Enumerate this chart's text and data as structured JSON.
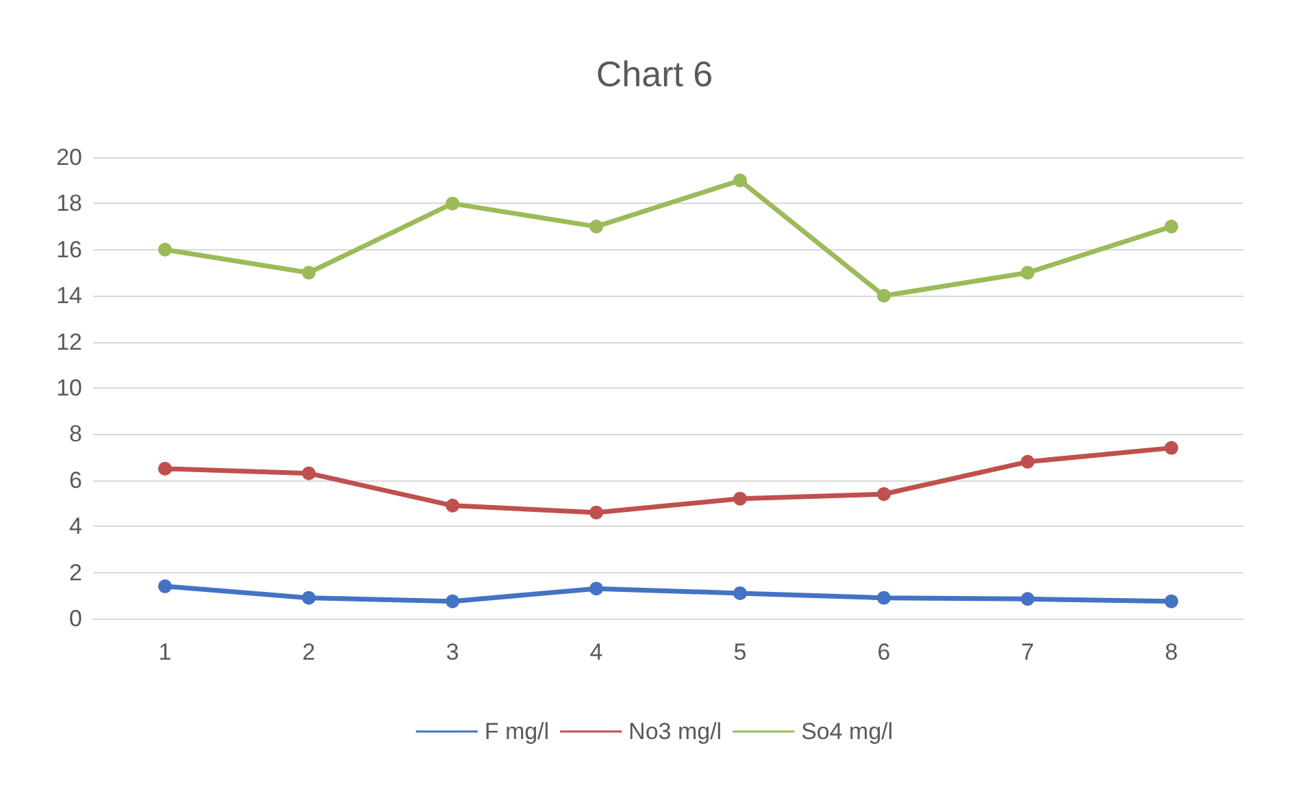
{
  "chart_data": {
    "type": "line",
    "title": "Chart 6",
    "categories": [
      "1",
      "2",
      "3",
      "4",
      "5",
      "6",
      "7",
      "8"
    ],
    "series": [
      {
        "name": "F mg/l",
        "color": "#4472c4",
        "values": [
          1.4,
          0.9,
          0.75,
          1.3,
          1.1,
          0.9,
          0.85,
          0.75
        ]
      },
      {
        "name": "No3 mg/l",
        "color": "#c0504d",
        "values": [
          6.5,
          6.3,
          4.9,
          4.6,
          5.2,
          5.4,
          6.8,
          7.4
        ]
      },
      {
        "name": "So4 mg/l",
        "color": "#9bbb59",
        "values": [
          16,
          15,
          18,
          17,
          19,
          14,
          15,
          17
        ]
      }
    ],
    "ylim": [
      0,
      20
    ],
    "yticks": [
      0,
      2,
      4,
      6,
      8,
      10,
      12,
      14,
      16,
      18,
      20
    ],
    "grid": "y",
    "legend": "bottom",
    "marker": "circle",
    "line_style": "solid"
  }
}
